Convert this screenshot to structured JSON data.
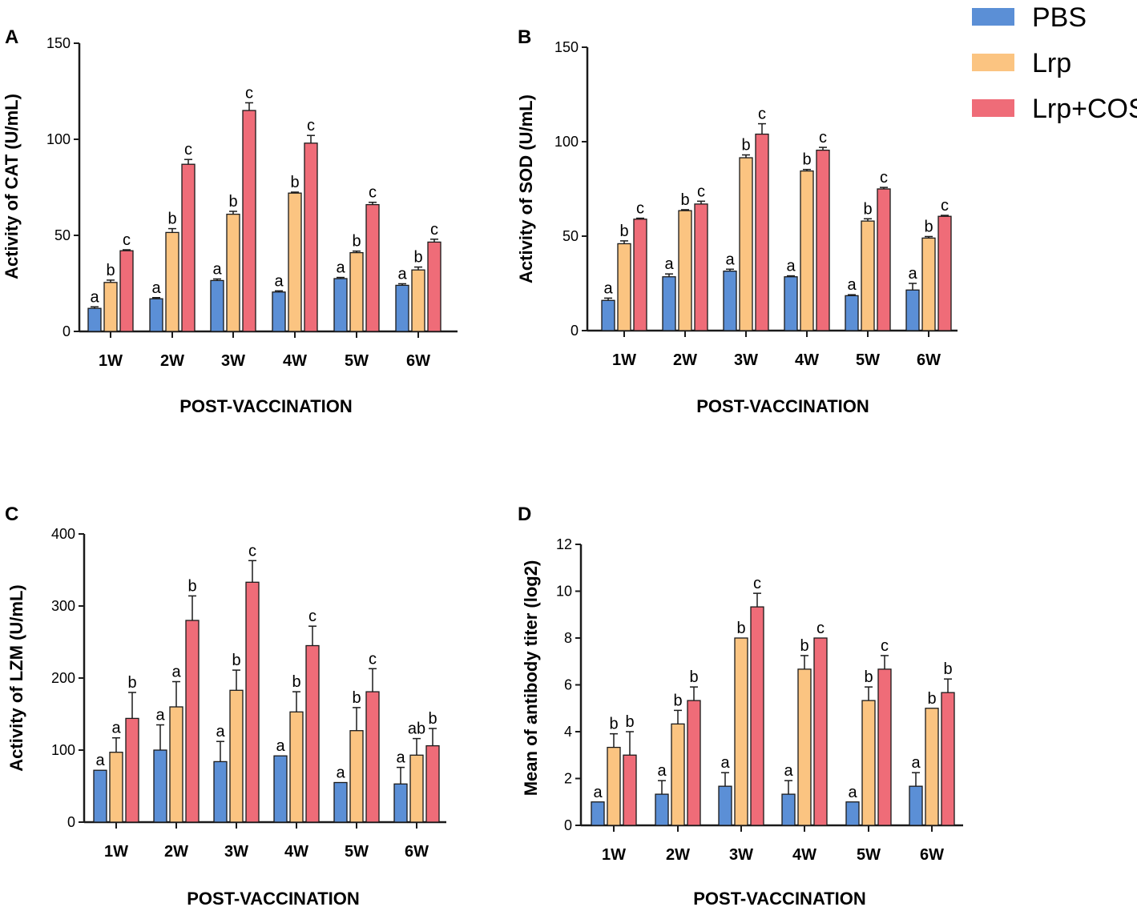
{
  "colors": {
    "PBS": "#5b8fd6",
    "Lrp": "#fbc481",
    "Lrp+COS": "#ef6c78",
    "stroke": "#1a1a1a"
  },
  "legend": [
    {
      "name": "PBS",
      "color": "#5b8fd6"
    },
    {
      "name": "Lrp",
      "color": "#fbc481"
    },
    {
      "name": "Lrp+COS",
      "color": "#ef6c78"
    }
  ],
  "chart_data": [
    {
      "panel": "A",
      "type": "bar",
      "title": "",
      "xlabel": "POST-VACCINATION",
      "ylabel": "Activity of CAT (U/mL)",
      "categories": [
        "1W",
        "2W",
        "3W",
        "4W",
        "5W",
        "6W"
      ],
      "ylim": [
        0,
        150
      ],
      "yticks": [
        0,
        50,
        100,
        150
      ],
      "series": [
        {
          "name": "PBS",
          "values": [
            12,
            17,
            26.5,
            20.5,
            27.5,
            24
          ],
          "errors": [
            0.8,
            0.6,
            0.8,
            0.6,
            0.6,
            0.8
          ],
          "labels": [
            "a",
            "a",
            "a",
            "a",
            "a",
            "a"
          ]
        },
        {
          "name": "Lrp",
          "values": [
            25.5,
            51.5,
            61,
            72,
            41,
            32
          ],
          "errors": [
            1.2,
            2,
            1.5,
            0.5,
            0.8,
            1.5
          ],
          "labels": [
            "b",
            "b",
            "b",
            "b",
            "b",
            "b"
          ]
        },
        {
          "name": "Lrp+COS",
          "values": [
            42,
            87,
            115,
            98,
            66,
            46.5
          ],
          "errors": [
            0.5,
            2.5,
            4,
            4,
            1.2,
            1.5
          ],
          "labels": [
            "c",
            "c",
            "c",
            "c",
            "c",
            "c"
          ]
        }
      ]
    },
    {
      "panel": "B",
      "type": "bar",
      "title": "",
      "xlabel": "POST-VACCINATION",
      "ylabel": "Activity of SOD (U/mL)",
      "categories": [
        "1W",
        "2W",
        "3W",
        "4W",
        "5W",
        "6W"
      ],
      "ylim": [
        0,
        150
      ],
      "yticks": [
        0,
        50,
        100,
        150
      ],
      "series": [
        {
          "name": "PBS",
          "values": [
            16,
            28.5,
            31.5,
            28.5,
            18.5,
            21.5
          ],
          "errors": [
            1.2,
            1.5,
            1,
            0.5,
            0.5,
            3.5
          ],
          "labels": [
            "a",
            "a",
            "a",
            "a",
            "a",
            "a"
          ]
        },
        {
          "name": "Lrp",
          "values": [
            46,
            63.5,
            91.5,
            84.5,
            58,
            49
          ],
          "errors": [
            1.5,
            0.5,
            1.5,
            0.8,
            1.2,
            0.8
          ],
          "labels": [
            "b",
            "b",
            "b",
            "b",
            "b",
            "b"
          ]
        },
        {
          "name": "Lrp+COS",
          "values": [
            59,
            67,
            104,
            95.5,
            75,
            60.5
          ],
          "errors": [
            0.5,
            1.5,
            5.5,
            1.5,
            0.8,
            0.5
          ],
          "labels": [
            "c",
            "c",
            "c",
            "c",
            "c",
            "c"
          ]
        }
      ]
    },
    {
      "panel": "C",
      "type": "bar",
      "title": "",
      "xlabel": "POST-VACCINATION",
      "ylabel": "Activity of LZM (U/mL)",
      "categories": [
        "1W",
        "2W",
        "3W",
        "4W",
        "5W",
        "6W"
      ],
      "ylim": [
        0,
        400
      ],
      "yticks": [
        0,
        100,
        200,
        300,
        400
      ],
      "series": [
        {
          "name": "PBS",
          "values": [
            72,
            100,
            84,
            92,
            55,
            53
          ],
          "errors": [
            0,
            35,
            28,
            0,
            0,
            23
          ],
          "labels": [
            "a",
            "a",
            "a",
            "a",
            "a",
            "a"
          ]
        },
        {
          "name": "Lrp",
          "values": [
            97,
            160,
            183,
            153,
            127,
            93
          ],
          "errors": [
            20,
            35,
            28,
            28,
            32,
            23
          ],
          "labels": [
            "a",
            "a",
            "b",
            "b",
            "b",
            "ab"
          ]
        },
        {
          "name": "Lrp+COS",
          "values": [
            144,
            280,
            333,
            245,
            181,
            106
          ],
          "errors": [
            36,
            34,
            30,
            27,
            32,
            24
          ],
          "labels": [
            "b",
            "b",
            "c",
            "c",
            "c",
            "b"
          ]
        }
      ]
    },
    {
      "panel": "D",
      "type": "bar",
      "title": "",
      "xlabel": "POST-VACCINATION",
      "ylabel": "Mean of antibody titer (log2)",
      "categories": [
        "1W",
        "2W",
        "3W",
        "4W",
        "5W",
        "6W"
      ],
      "ylim": [
        0,
        12
      ],
      "yticks": [
        0,
        2,
        4,
        6,
        8,
        10,
        12
      ],
      "series": [
        {
          "name": "PBS",
          "values": [
            1,
            1.33,
            1.67,
            1.33,
            1,
            1.67
          ],
          "errors": [
            0,
            0.58,
            0.58,
            0.58,
            0,
            0.58
          ],
          "labels": [
            "a",
            "a",
            "a",
            "a",
            "a",
            "a"
          ]
        },
        {
          "name": "Lrp",
          "values": [
            3.33,
            4.33,
            8,
            6.67,
            5.33,
            5
          ],
          "errors": [
            0.58,
            0.58,
            0,
            0.58,
            0.58,
            0
          ],
          "labels": [
            "b",
            "b",
            "b",
            "b",
            "b",
            "b"
          ]
        },
        {
          "name": "Lrp+COS",
          "values": [
            3,
            5.33,
            9.33,
            8,
            6.67,
            5.67
          ],
          "errors": [
            1,
            0.58,
            0.58,
            0,
            0.58,
            0.58
          ],
          "labels": [
            "b",
            "b",
            "c",
            "c",
            "c",
            "b"
          ]
        }
      ]
    }
  ]
}
